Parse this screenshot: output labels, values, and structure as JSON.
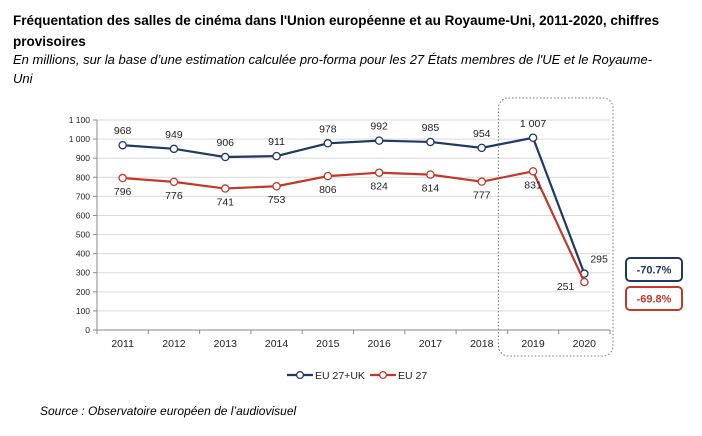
{
  "header": {
    "title": "Fréquentation des salles de cinéma dans l'Union européenne et au Royaume-Uni, 2011-2020, chiffres provisoires",
    "subtitle": "En millions, sur la base d’une estimation calculée pro-forma pour les 27 États membres de l'UE et le Royaume-Uni"
  },
  "source": "Source : Observatoire européen de l’audiovisuel",
  "chart_data": {
    "type": "line",
    "categories": [
      "2011",
      "2012",
      "2013",
      "2014",
      "2015",
      "2016",
      "2017",
      "2018",
      "2019",
      "2020"
    ],
    "series": [
      {
        "name": "EU 27+UK",
        "color": "#1f3864",
        "values": [
          968,
          949,
          906,
          911,
          978,
          992,
          985,
          954,
          1007,
          295
        ],
        "labels": [
          "968",
          "949",
          "906",
          "911",
          "978",
          "992",
          "985",
          "954",
          "1 007",
          "295"
        ],
        "change": "-70.7%"
      },
      {
        "name": "EU 27",
        "color": "#c0392b",
        "values": [
          796,
          776,
          741,
          753,
          806,
          824,
          814,
          777,
          831,
          251
        ],
        "labels": [
          "796",
          "776",
          "741",
          "753",
          "806",
          "824",
          "814",
          "777",
          "831",
          "251"
        ],
        "change": "-69.8%"
      }
    ],
    "ylim": [
      0,
      1100
    ],
    "yticks": [
      0,
      100,
      200,
      300,
      400,
      500,
      600,
      700,
      800,
      900,
      1000,
      1100
    ],
    "ytick_labels": [
      "0",
      "100",
      "200",
      "300",
      "400",
      "500",
      "600",
      "700",
      "800",
      "900",
      "1 000",
      "1 100"
    ],
    "highlight": [
      "2019",
      "2020"
    ],
    "grid": true,
    "legend": "bottom"
  }
}
